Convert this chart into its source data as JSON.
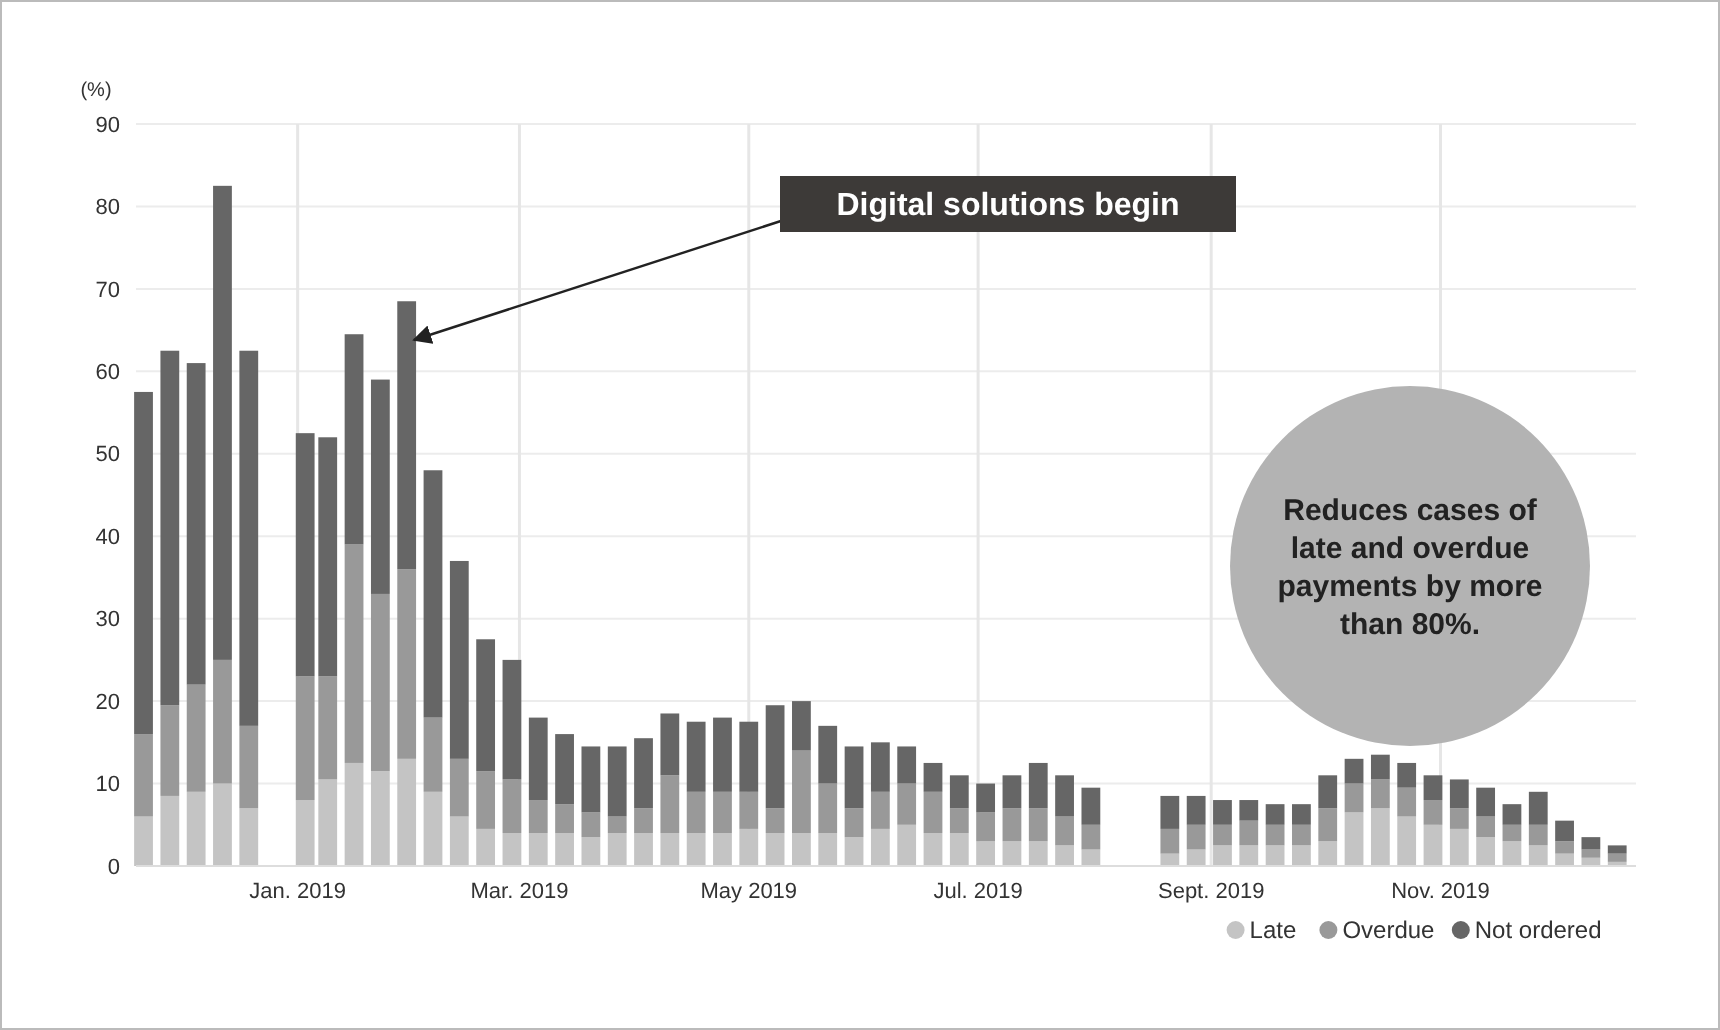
{
  "chart_data": {
    "type": "bar",
    "stacked": true,
    "ylabel": "(%)",
    "x": [
      "2018-11-21",
      "2018-11-28",
      "2018-12-05",
      "2018-12-12",
      "2018-12-19",
      "2019-01-03",
      "2019-01-09",
      "2019-01-16",
      "2019-01-23",
      "2019-01-30",
      "2019-02-06",
      "2019-02-13",
      "2019-02-20",
      "2019-02-27",
      "2019-03-06",
      "2019-03-13",
      "2019-03-20",
      "2019-03-27",
      "2019-04-03",
      "2019-04-10",
      "2019-04-17",
      "2019-04-24",
      "2019-05-01",
      "2019-05-08",
      "2019-05-15",
      "2019-05-22",
      "2019-05-29",
      "2019-06-05",
      "2019-06-12",
      "2019-06-19",
      "2019-06-26",
      "2019-07-03",
      "2019-07-10",
      "2019-07-17",
      "2019-07-24",
      "2019-07-31",
      "2019-08-21",
      "2019-08-28",
      "2019-09-04",
      "2019-09-11",
      "2019-09-18",
      "2019-09-25",
      "2019-10-02",
      "2019-10-09",
      "2019-10-16",
      "2019-10-23",
      "2019-10-30",
      "2019-11-06",
      "2019-11-13",
      "2019-11-20",
      "2019-11-27",
      "2019-12-04",
      "2019-12-11",
      "2019-12-18"
    ],
    "series": [
      {
        "name": "Late",
        "color": "#c4c4c4",
        "values": [
          6,
          8.5,
          9,
          10,
          7,
          8,
          10.5,
          12.5,
          11.5,
          13,
          9,
          6,
          4.5,
          4,
          4,
          4,
          3.5,
          4,
          4,
          4,
          4,
          4,
          4.5,
          4,
          4,
          4,
          3.5,
          4.5,
          5,
          4,
          4,
          3,
          3,
          3,
          2.5,
          2,
          1.5,
          2,
          2.5,
          2.5,
          2.5,
          2.5,
          3,
          6.5,
          7,
          6,
          5,
          4.5,
          3.5,
          3,
          2.5,
          1.5,
          1,
          0.5
        ]
      },
      {
        "name": "Overdue",
        "color": "#999999",
        "values": [
          10,
          11,
          13,
          15,
          10,
          15,
          12.5,
          26.5,
          21.5,
          23,
          9,
          7,
          7,
          6.5,
          4,
          3.5,
          3,
          2,
          3,
          7,
          5,
          5,
          4.5,
          3,
          10,
          6,
          3.5,
          4.5,
          5,
          5,
          3,
          3.5,
          4,
          4,
          3.5,
          3,
          3,
          3,
          2.5,
          3,
          2.5,
          2.5,
          4,
          3.5,
          3.5,
          3.5,
          3,
          2.5,
          2.5,
          2,
          2.5,
          1.5,
          1,
          1
        ]
      },
      {
        "name": "Not ordered",
        "color": "#666666",
        "values": [
          41.5,
          43,
          39,
          57.5,
          45.5,
          29.5,
          29,
          25.5,
          26,
          32.5,
          30,
          24,
          16,
          14.5,
          10,
          8.5,
          8,
          8.5,
          8.5,
          7.5,
          8.5,
          9,
          8.5,
          12.5,
          6,
          7,
          7.5,
          6,
          4.5,
          3.5,
          4,
          3.5,
          4,
          5.5,
          5,
          4.5,
          4,
          3.5,
          3,
          2.5,
          2.5,
          2.5,
          4,
          3,
          3,
          3,
          3,
          3.5,
          3.5,
          2.5,
          4,
          2.5,
          1.5,
          1
        ]
      }
    ],
    "xlim": [
      "2018-11-19",
      "2019-12-23"
    ],
    "xticks": [
      {
        "value": "2019-01-01",
        "label": "Jan. 2019"
      },
      {
        "value": "2019-03-01",
        "label": "Mar. 2019"
      },
      {
        "value": "2019-05-01",
        "label": "May 2019"
      },
      {
        "value": "2019-07-01",
        "label": "Jul. 2019"
      },
      {
        "value": "2019-09-01",
        "label": "Sept. 2019"
      },
      {
        "value": "2019-11-01",
        "label": "Nov. 2019"
      }
    ],
    "ylim": [
      0,
      90
    ],
    "yticks": [
      0,
      10,
      20,
      30,
      40,
      50,
      60,
      70,
      80,
      90
    ],
    "grid": true,
    "legend": "bottom right",
    "annotations": [
      "Digital solutions begin",
      "Reduces cases of late and overdue payments by more than 80%."
    ]
  }
}
